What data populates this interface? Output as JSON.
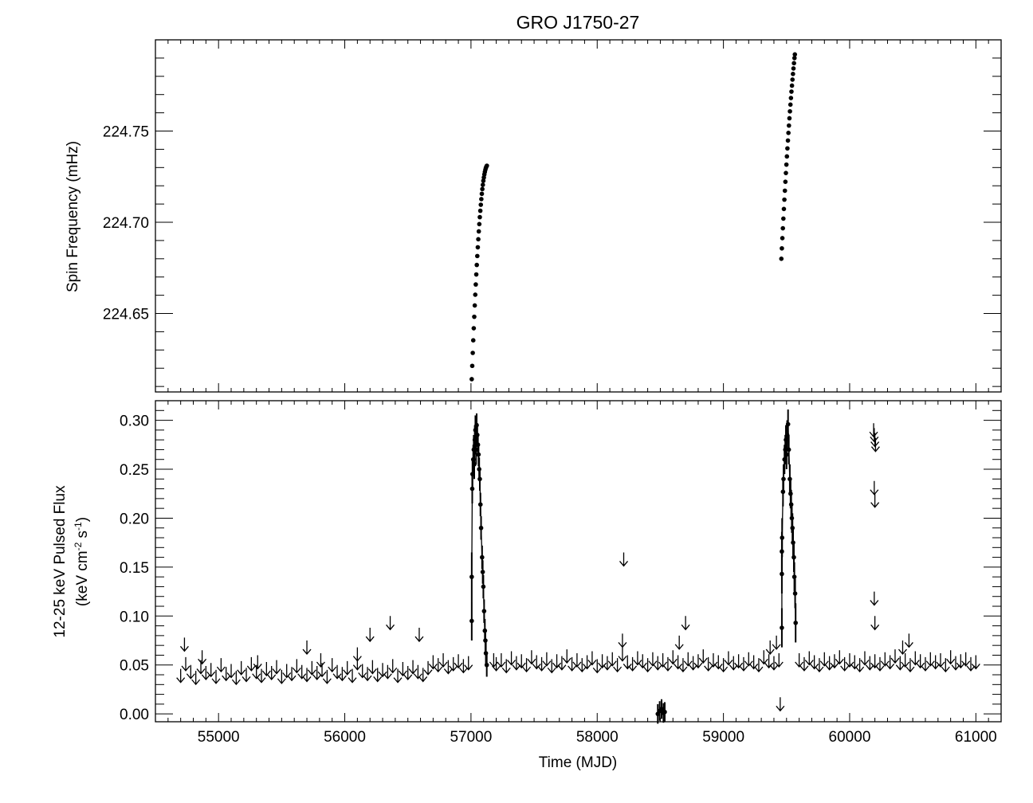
{
  "chart_data": [
    {
      "type": "scatter",
      "title": "GRO J1750-27",
      "xlabel": "",
      "ylabel": "Spin Frequency (mHz)",
      "xlim": [
        54500,
        61200
      ],
      "ylim": [
        224.607,
        224.8
      ],
      "x_ticks": [
        55000,
        56000,
        57000,
        58000,
        59000,
        60000,
        61000
      ],
      "y_ticks": [
        "224.65",
        "224.70",
        "224.75"
      ],
      "grid": false,
      "series": [
        {
          "x": [
            57006,
            57010,
            57014,
            57018,
            57022,
            57026,
            57030,
            57034,
            57038,
            57042,
            57046,
            57050,
            57054,
            57058,
            57062,
            57066,
            57070,
            57074,
            57078,
            57082,
            57086,
            57090,
            57094,
            57098,
            57102,
            57106,
            57110,
            57114,
            57118,
            57122,
            57126
          ],
          "y": [
            224.614,
            224.6213,
            224.6284,
            224.6353,
            224.6419,
            224.6482,
            224.6544,
            224.6603,
            224.6659,
            224.6714,
            224.6766,
            224.6815,
            224.6863,
            224.6907,
            224.695,
            224.699,
            224.7028,
            224.7063,
            224.7096,
            224.7127,
            224.7156,
            224.7182,
            224.7205,
            224.7227,
            224.7245,
            224.7262,
            224.7276,
            224.7288,
            224.7298,
            224.7305,
            224.731
          ]
        },
        {
          "x": [
            59459,
            59463,
            59467,
            59471,
            59475,
            59479,
            59483,
            59487,
            59491,
            59495,
            59499,
            59503,
            59507,
            59511,
            59515,
            59519,
            59523,
            59527,
            59531,
            59535,
            59539,
            59543,
            59547,
            59551,
            59555,
            59559,
            59563,
            59566
          ],
          "y": [
            224.68,
            224.6857,
            224.6913,
            224.6967,
            224.702,
            224.7073,
            224.7124,
            224.7173,
            224.7222,
            224.727,
            224.7316,
            224.7361,
            224.7405,
            224.7448,
            224.749,
            224.753,
            224.757,
            224.7608,
            224.7645,
            224.7681,
            224.7716,
            224.7749,
            224.7782,
            224.7813,
            224.7843,
            224.7872,
            224.79,
            224.792
          ]
        }
      ]
    },
    {
      "type": "scatter",
      "title": "",
      "xlabel": "Time (MJD)",
      "ylabel": "12-25 keV Pulsed Flux",
      "ylabel_units": {
        "base": "(keV cm",
        "exp1": "-2",
        "mid": " s",
        "exp2": "-1",
        "end": ")"
      },
      "xlim": [
        54500,
        61200
      ],
      "ylim": [
        -0.008,
        0.32
      ],
      "x_ticks": [
        55000,
        56000,
        57000,
        58000,
        59000,
        60000,
        61000
      ],
      "y_ticks": [
        "0.00",
        "0.05",
        "0.10",
        "0.15",
        "0.20",
        "0.25",
        "0.30"
      ],
      "grid": false,
      "detections": [
        {
          "x": [
            57006,
            57006,
            57010,
            57012,
            57018,
            57022,
            57026,
            57030,
            57035,
            57040,
            57045,
            57050,
            57055,
            57060,
            57065,
            57070,
            57075,
            57080,
            57088,
            57093,
            57098,
            57104,
            57110,
            57114,
            57118,
            57125
          ],
          "y": [
            0.095,
            0.14,
            0.23,
            0.245,
            0.26,
            0.27,
            0.255,
            0.28,
            0.29,
            0.27,
            0.295,
            0.285,
            0.275,
            0.265,
            0.25,
            0.24,
            0.214,
            0.19,
            0.16,
            0.145,
            0.13,
            0.105,
            0.085,
            0.075,
            0.062,
            0.05
          ],
          "err": [
            0.02,
            0.025,
            0.015,
            0.015,
            0.015,
            0.015,
            0.015,
            0.015,
            0.015,
            0.015,
            0.012,
            0.012,
            0.012,
            0.012,
            0.012,
            0.012,
            0.012,
            0.012,
            0.012,
            0.012,
            0.012,
            0.012,
            0.012,
            0.012,
            0.012,
            0.012
          ]
        },
        {
          "x": [
            59463,
            59463,
            59463,
            59465,
            59472,
            59476,
            59484,
            59490,
            59495,
            59500,
            59505,
            59512,
            59518,
            59526,
            59532,
            59537,
            59542,
            59547,
            59552,
            59558,
            59562,
            59568,
            59572
          ],
          "y": [
            0.088,
            0.143,
            0.166,
            0.18,
            0.227,
            0.24,
            0.26,
            0.27,
            0.28,
            0.265,
            0.285,
            0.296,
            0.27,
            0.24,
            0.225,
            0.214,
            0.2,
            0.19,
            0.175,
            0.16,
            0.14,
            0.123,
            0.093
          ],
          "err": [
            0.02,
            0.02,
            0.02,
            0.02,
            0.015,
            0.015,
            0.015,
            0.015,
            0.015,
            0.015,
            0.015,
            0.015,
            0.015,
            0.015,
            0.015,
            0.015,
            0.015,
            0.015,
            0.015,
            0.015,
            0.015,
            0.015,
            0.02
          ]
        },
        {
          "x": [
            58480,
            58495,
            58510,
            58525,
            58535
          ],
          "y": [
            0.0,
            0.003,
            0.005,
            0.001,
            0.002
          ],
          "err": [
            0.01,
            0.01,
            0.01,
            0.01,
            0.01
          ]
        }
      ],
      "upper_limits": {
        "x": [
          54700,
          54740,
          54780,
          54820,
          54860,
          54900,
          54940,
          54980,
          55020,
          55060,
          55100,
          55140,
          55180,
          55220,
          55260,
          55300,
          55340,
          55380,
          55420,
          55460,
          55500,
          55540,
          55580,
          55620,
          55660,
          55700,
          55740,
          55780,
          55820,
          55860,
          55900,
          55940,
          55980,
          56020,
          56060,
          56100,
          56140,
          56180,
          56220,
          56260,
          56300,
          56340,
          56380,
          56420,
          56460,
          56500,
          56540,
          56580,
          56620,
          56660,
          56700,
          56740,
          56780,
          56820,
          56860,
          56900,
          56940,
          56980,
          57200,
          57240,
          57280,
          57320,
          57360,
          57400,
          57440,
          57480,
          57520,
          57560,
          57600,
          57640,
          57680,
          57720,
          57760,
          57800,
          57840,
          57880,
          57920,
          57960,
          58000,
          58040,
          58080,
          58120,
          58160,
          58200,
          58240,
          58280,
          58320,
          58360,
          58400,
          58440,
          58480,
          58520,
          58560,
          58600,
          58640,
          58680,
          58720,
          58760,
          58800,
          58840,
          58880,
          58920,
          58960,
          59000,
          59040,
          59080,
          59120,
          59160,
          59200,
          59240,
          59280,
          59320,
          59360,
          59400,
          59440,
          59600,
          59640,
          59680,
          59720,
          59760,
          59800,
          59840,
          59880,
          59920,
          59960,
          60000,
          60040,
          60080,
          60120,
          60160,
          60200,
          60240,
          60280,
          60320,
          60360,
          60400,
          60440,
          60480,
          60520,
          60560,
          60600,
          60640,
          60680,
          60720,
          60760,
          60800,
          60840,
          60880,
          60920,
          60960,
          61000,
          54730,
          54870,
          55310,
          55700,
          55810,
          56100,
          56200,
          56360,
          56590,
          57180,
          58200,
          58210,
          58650,
          58700,
          59370,
          59420,
          59450,
          60190,
          60195,
          60200,
          60205,
          60195,
          60200,
          60195,
          60200,
          60420,
          60470
        ],
        "y": [
          0.046,
          0.058,
          0.05,
          0.044,
          0.055,
          0.049,
          0.052,
          0.045,
          0.057,
          0.048,
          0.051,
          0.044,
          0.054,
          0.047,
          0.058,
          0.05,
          0.046,
          0.053,
          0.049,
          0.055,
          0.045,
          0.051,
          0.048,
          0.056,
          0.05,
          0.047,
          0.054,
          0.049,
          0.052,
          0.045,
          0.057,
          0.05,
          0.048,
          0.054,
          0.046,
          0.059,
          0.051,
          0.048,
          0.055,
          0.047,
          0.052,
          0.05,
          0.056,
          0.046,
          0.053,
          0.049,
          0.055,
          0.05,
          0.047,
          0.054,
          0.06,
          0.057,
          0.062,
          0.055,
          0.058,
          0.061,
          0.056,
          0.059,
          0.058,
          0.062,
          0.056,
          0.064,
          0.059,
          0.061,
          0.057,
          0.065,
          0.06,
          0.058,
          0.063,
          0.056,
          0.061,
          0.059,
          0.066,
          0.058,
          0.062,
          0.057,
          0.06,
          0.064,
          0.056,
          0.061,
          0.059,
          0.063,
          0.057,
          0.068,
          0.06,
          0.058,
          0.064,
          0.061,
          0.057,
          0.063,
          0.059,
          0.062,
          0.058,
          0.065,
          0.06,
          0.057,
          0.063,
          0.059,
          0.061,
          0.066,
          0.058,
          0.062,
          0.06,
          0.057,
          0.064,
          0.059,
          0.061,
          0.058,
          0.063,
          0.06,
          0.057,
          0.065,
          0.061,
          0.059,
          0.062,
          0.062,
          0.058,
          0.064,
          0.06,
          0.057,
          0.063,
          0.059,
          0.061,
          0.065,
          0.058,
          0.062,
          0.06,
          0.057,
          0.064,
          0.059,
          0.061,
          0.058,
          0.063,
          0.06,
          0.066,
          0.059,
          0.062,
          0.057,
          0.064,
          0.061,
          0.058,
          0.063,
          0.06,
          0.062,
          0.057,
          0.065,
          0.059,
          0.061,
          0.063,
          0.058,
          0.06,
          0.078,
          0.065,
          0.06,
          0.075,
          0.062,
          0.068,
          0.088,
          0.1,
          0.088,
          0.062,
          0.082,
          0.165,
          0.08,
          0.1,
          0.075,
          0.08,
          0.017,
          0.297,
          0.292,
          0.287,
          0.282,
          0.238,
          0.225,
          0.125,
          0.1,
          0.075,
          0.082
        ]
      }
    }
  ],
  "colors": {
    "marks": "#000000",
    "background": "#ffffff"
  }
}
